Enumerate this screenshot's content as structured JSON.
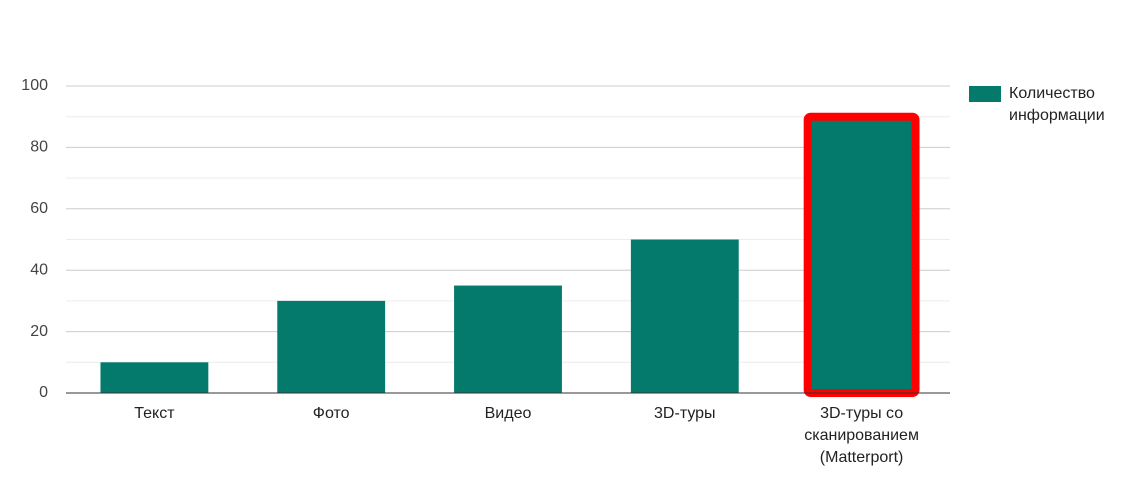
{
  "chart_data": {
    "type": "bar",
    "categories": [
      "Текст",
      "Фото",
      "Видео",
      "3D-туры",
      "3D-туры со сканированием (Matterport)"
    ],
    "series": [
      {
        "name": "Количество информации",
        "color": "#037a6c",
        "values": [
          10,
          30,
          35,
          50,
          90
        ]
      }
    ],
    "ylim": [
      0,
      100
    ],
    "yticks": [
      0,
      20,
      40,
      60,
      80,
      100
    ],
    "grid": true,
    "minor_grid": true,
    "legend": "right",
    "highlight_index": 4,
    "highlight_color": "#ff0000"
  }
}
